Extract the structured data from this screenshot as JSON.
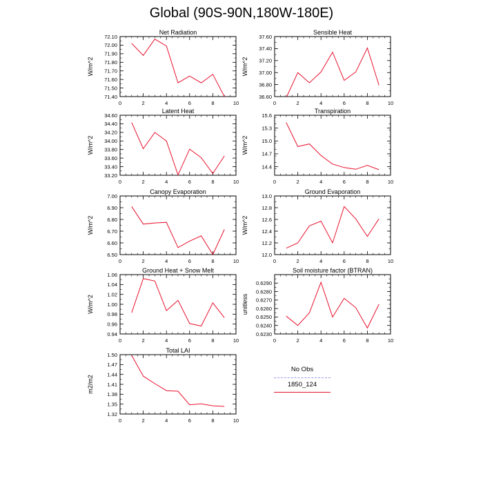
{
  "title": "Global (90S-90N,180W-180E)",
  "legend": {
    "items": [
      {
        "label": "No Obs",
        "color": "#9999ee",
        "style": "dashed"
      },
      {
        "label": "1850_124",
        "color": "#e8112d",
        "style": "solid"
      }
    ]
  },
  "colors": {
    "series": "#e8112d"
  },
  "chart_data": [
    {
      "type": "line",
      "title": "Net Radiation",
      "ylabel": "W/m^2",
      "xlim": [
        0,
        10
      ],
      "x_ticks": [
        0,
        2,
        4,
        6,
        8,
        10
      ],
      "ylim": [
        71.4,
        72.1
      ],
      "y_ticks": [
        "72.10",
        "72.00",
        "71.90",
        "71.80",
        "71.70",
        "71.60",
        "71.50",
        "71.40"
      ],
      "x": [
        1,
        2,
        3,
        4,
        5,
        6,
        7,
        8,
        9
      ],
      "values": [
        72.02,
        71.88,
        72.07,
        71.99,
        71.56,
        71.64,
        71.56,
        71.66,
        71.4
      ]
    },
    {
      "type": "line",
      "title": "Sensible Heat",
      "ylabel": "W/m^2",
      "xlim": [
        0,
        10
      ],
      "x_ticks": [
        0,
        2,
        4,
        6,
        8,
        10
      ],
      "ylim": [
        36.6,
        37.6
      ],
      "y_ticks": [
        "37.60",
        "37.40",
        "37.20",
        "37.00",
        "36.80",
        "36.60"
      ],
      "x": [
        1,
        2,
        3,
        4,
        5,
        6,
        7,
        8,
        9
      ],
      "values": [
        36.58,
        37.0,
        36.83,
        37.01,
        37.34,
        36.87,
        37.01,
        37.41,
        36.79
      ]
    },
    {
      "type": "line",
      "title": "Latent Heat",
      "ylabel": "W/m^2",
      "xlim": [
        0,
        10
      ],
      "x_ticks": [
        0,
        2,
        4,
        6,
        8,
        10
      ],
      "ylim": [
        33.2,
        34.6
      ],
      "y_ticks": [
        "34.60",
        "34.40",
        "34.20",
        "34.00",
        "33.80",
        "33.60",
        "33.40",
        "33.20"
      ],
      "x": [
        1,
        2,
        3,
        4,
        5,
        6,
        7,
        8,
        9
      ],
      "values": [
        34.43,
        33.82,
        34.2,
        34.0,
        33.21,
        33.81,
        33.61,
        33.24,
        33.65
      ]
    },
    {
      "type": "line",
      "title": "Transpiration",
      "ylabel": "W/m^2",
      "xlim": [
        0,
        10
      ],
      "x_ticks": [
        0,
        2,
        4,
        6,
        8,
        10
      ],
      "ylim": [
        14.2,
        15.6
      ],
      "y_ticks": [
        "15.6",
        "15.3",
        "15.0",
        "14.7",
        "14.4"
      ],
      "x": [
        1,
        2,
        3,
        4,
        5,
        6,
        7,
        8,
        9
      ],
      "values": [
        15.43,
        14.87,
        14.93,
        14.66,
        14.46,
        14.38,
        14.34,
        14.43,
        14.33
      ]
    },
    {
      "type": "line",
      "title": "Canopy Evaporation",
      "ylabel": "W/m^2",
      "xlim": [
        0,
        10
      ],
      "x_ticks": [
        0,
        2,
        4,
        6,
        8,
        10
      ],
      "ylim": [
        6.5,
        7.0
      ],
      "y_ticks": [
        "7.00",
        "6.90",
        "6.80",
        "6.70",
        "6.60",
        "6.50"
      ],
      "x": [
        1,
        2,
        3,
        4,
        5,
        6,
        7,
        8,
        9
      ],
      "values": [
        6.91,
        6.76,
        6.77,
        6.775,
        6.56,
        6.615,
        6.66,
        6.5,
        6.715
      ]
    },
    {
      "type": "line",
      "title": "Ground Evaporation",
      "ylabel": "W/m^2",
      "xlim": [
        0,
        10
      ],
      "x_ticks": [
        0,
        2,
        4,
        6,
        8,
        10
      ],
      "ylim": [
        12.0,
        13.0
      ],
      "y_ticks": [
        "13.0",
        "12.8",
        "12.6",
        "12.4",
        "12.2",
        "12.0"
      ],
      "x": [
        1,
        2,
        3,
        4,
        5,
        6,
        7,
        8,
        9
      ],
      "values": [
        12.11,
        12.2,
        12.49,
        12.57,
        12.2,
        12.82,
        12.61,
        12.31,
        12.61
      ]
    },
    {
      "type": "line",
      "title": "Ground Heat + Snow Melt",
      "ylabel": "W/m^2",
      "xlim": [
        0,
        10
      ],
      "x_ticks": [
        0,
        2,
        4,
        6,
        8,
        10
      ],
      "ylim": [
        0.94,
        1.06
      ],
      "y_ticks": [
        "1.06",
        "1.04",
        "1.02",
        "1.00",
        "0.98",
        "0.96",
        "0.94"
      ],
      "x": [
        1,
        2,
        3,
        4,
        5,
        6,
        7,
        8,
        9
      ],
      "values": [
        0.983,
        1.052,
        1.047,
        0.987,
        1.008,
        0.961,
        0.956,
        1.003,
        0.973
      ]
    },
    {
      "type": "line",
      "title": "Soil moisture factor (BTRAN)",
      "ylabel": "unitless",
      "xlim": [
        0,
        10
      ],
      "x_ticks": [
        0,
        2,
        4,
        6,
        8,
        10
      ],
      "ylim": [
        0.623,
        0.63
      ],
      "y_ticks": [
        "0.6290",
        "0.6280",
        "0.6270",
        "0.6260",
        "0.6250",
        "0.6240",
        "0.6230"
      ],
      "x": [
        1,
        2,
        3,
        4,
        5,
        6,
        7,
        8,
        9
      ],
      "values": [
        0.6251,
        0.624,
        0.6255,
        0.6291,
        0.625,
        0.6272,
        0.6261,
        0.6237,
        0.6265
      ]
    },
    {
      "type": "line",
      "title": "Total LAI",
      "ylabel": "m2/m2",
      "xlim": [
        0,
        10
      ],
      "x_ticks": [
        0,
        2,
        4,
        6,
        8,
        10
      ],
      "ylim": [
        1.32,
        1.5
      ],
      "y_ticks": [
        "1.50",
        "1.47",
        "1.44",
        "1.41",
        "1.38",
        "1.35",
        "1.32"
      ],
      "x": [
        1,
        2,
        3,
        4,
        5,
        6,
        7,
        8,
        9
      ],
      "values": [
        1.498,
        1.435,
        1.412,
        1.391,
        1.389,
        1.348,
        1.351,
        1.345,
        1.343
      ]
    }
  ]
}
